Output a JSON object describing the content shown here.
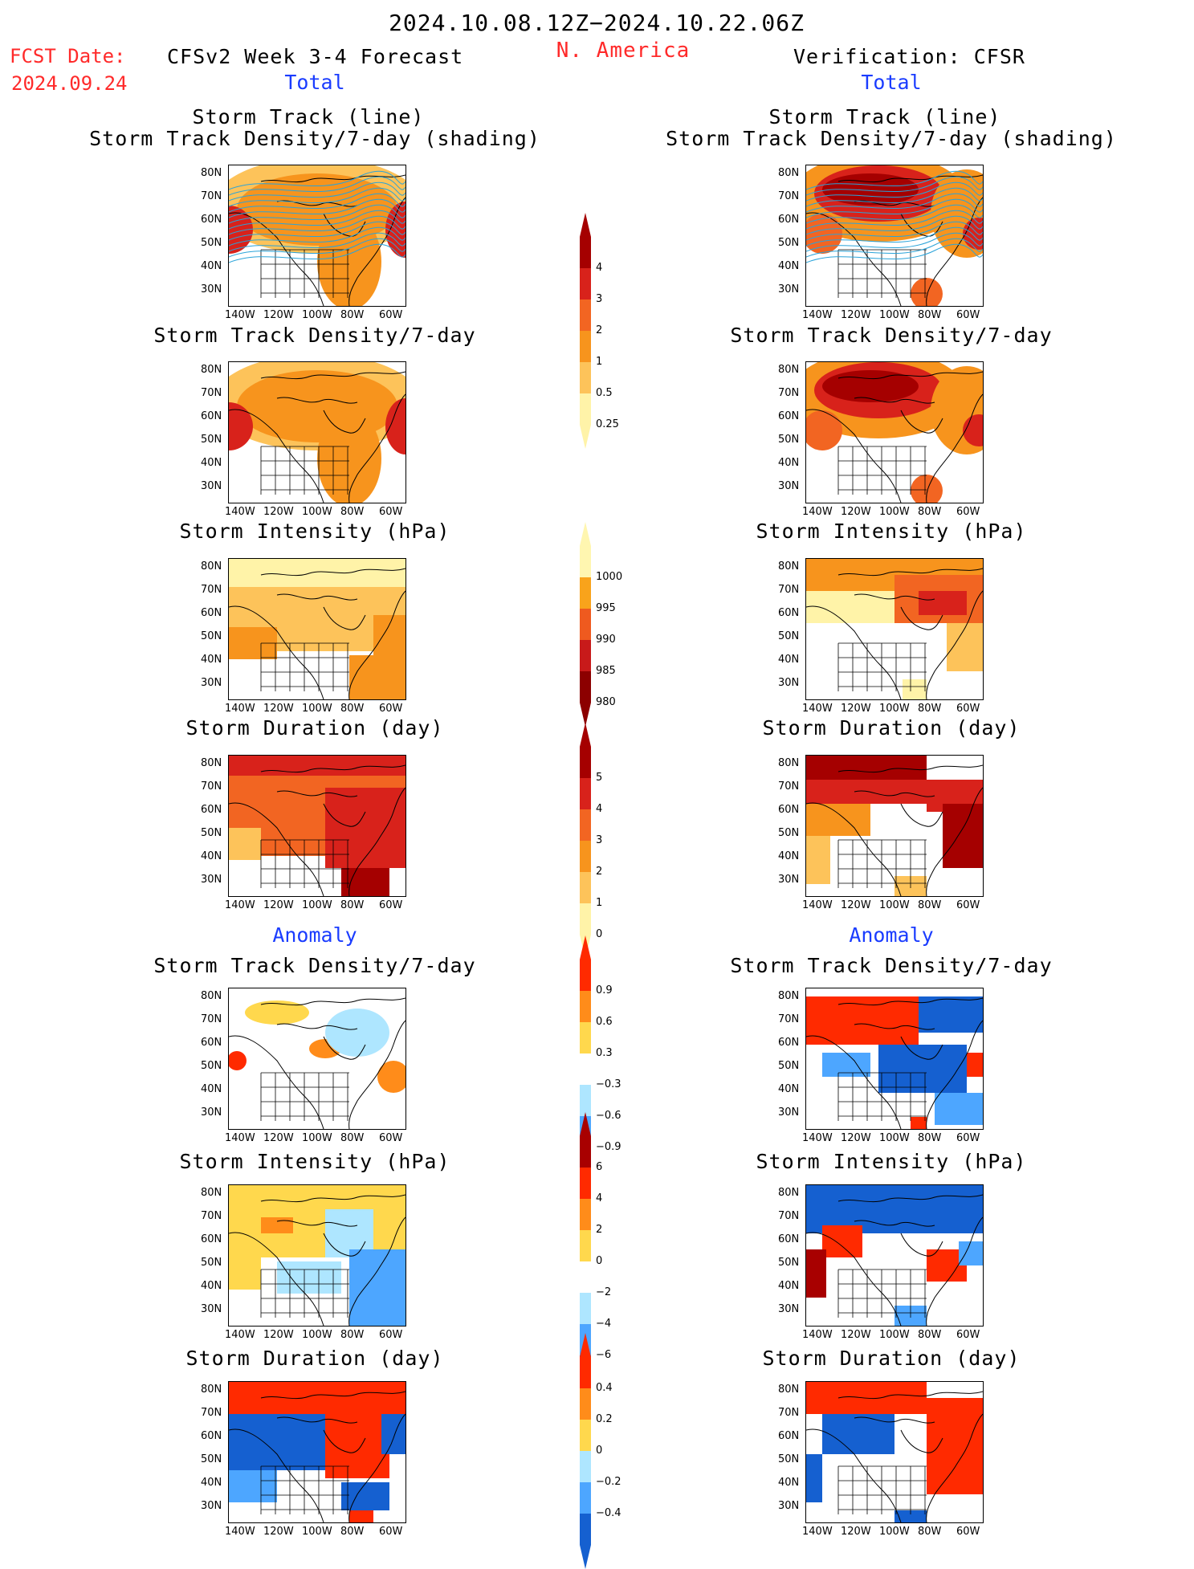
{
  "header": {
    "period": "2024.10.08.12Z−2024.10.22.06Z",
    "fcst_label": "FCST Date:",
    "fcst_date": "2024.09.24",
    "left_title": "CFSv2 Week 3-4 Forecast",
    "region": "N. America",
    "right_title": "Verification: CFSR",
    "total_left": "Total",
    "total_right": "Total",
    "anomaly_left": "Anomaly",
    "anomaly_right": "Anomaly"
  },
  "panels": {
    "track_line": "Storm Track (line)",
    "track_shading": "Storm Track Density/7-day (shading)",
    "track_density": "Storm Track Density/7-day",
    "intensity": "Storm Intensity (hPa)",
    "duration": "Storm Duration (day)"
  },
  "axes": {
    "lat": [
      "80N",
      "70N",
      "60N",
      "50N",
      "40N",
      "30N"
    ],
    "lon": [
      "140W",
      "120W",
      "100W",
      "80W",
      "60W"
    ]
  },
  "colors": {
    "accent_red": "#ff2a2a",
    "accent_blue": "#1a3cff"
  },
  "colorbars": {
    "density_total": {
      "labels": [
        "4",
        "3",
        "2",
        "1",
        "0.5",
        "0.25"
      ],
      "colors": [
        "#a50000",
        "#d8221b",
        "#f26522",
        "#f7941d",
        "#fdc35a",
        "#fff3a8"
      ]
    },
    "intensity_total": {
      "labels": [
        "1000",
        "995",
        "990",
        "985",
        "980"
      ],
      "colors": [
        "#fff6b0",
        "#f9a31b",
        "#ef5a1f",
        "#c81a1a",
        "#8c0000"
      ]
    },
    "duration_total": {
      "labels": [
        "5",
        "4",
        "3",
        "2",
        "1",
        "0"
      ],
      "colors": [
        "#a50000",
        "#d8221b",
        "#f26522",
        "#f7941d",
        "#fdc35a",
        "#fff3a8"
      ]
    },
    "density_anom": {
      "labels": [
        "0.9",
        "0.6",
        "0.3",
        "−0.3",
        "−0.6",
        "−0.9"
      ],
      "colors": [
        "#ff2a00",
        "#ff8c1a",
        "#ffd84d",
        "#ffffff",
        "#aee6ff",
        "#4da6ff",
        "#1560d0"
      ]
    },
    "intensity_anom": {
      "labels": [
        "6",
        "4",
        "2",
        "0",
        "−2",
        "−4",
        "−6"
      ],
      "colors": [
        "#a80000",
        "#ff2a00",
        "#ff8c1a",
        "#ffd84d",
        "#ffffff",
        "#aee6ff",
        "#4da6ff",
        "#1560d0"
      ]
    },
    "duration_anom": {
      "labels": [
        "0.4",
        "0.2",
        "0",
        "−0.2",
        "−0.4"
      ],
      "colors": [
        "#ff2a00",
        "#ff8c1a",
        "#ffd84d",
        "#aee6ff",
        "#4da6ff",
        "#1560d0"
      ]
    }
  }
}
